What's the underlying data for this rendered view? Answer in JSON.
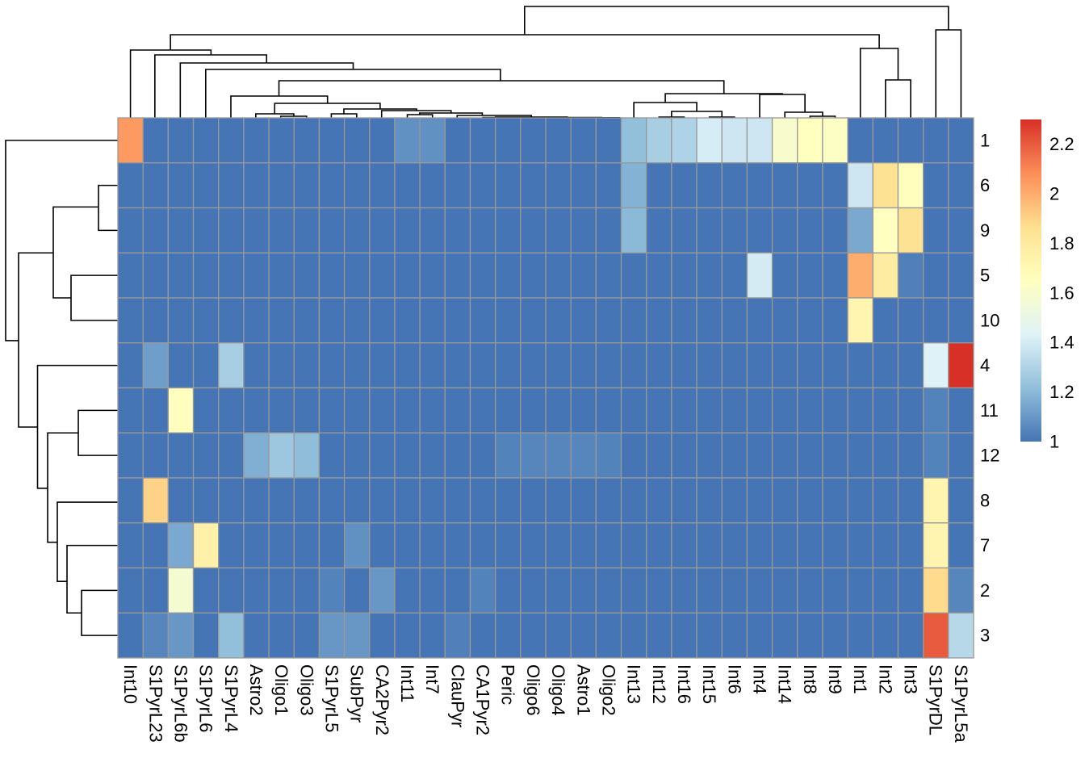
{
  "chart_data": {
    "type": "heatmap",
    "title": "",
    "columns": [
      "Int10",
      "S1PyrL23",
      "S1PyrL6b",
      "S1PyrL6",
      "S1PyrL4",
      "Astro2",
      "Oligo1",
      "Oligo3",
      "S1PyrL5",
      "SubPyr",
      "CA2Pyr2",
      "Int11",
      "Int7",
      "ClauPyr",
      "CA1Pyr2",
      "Peric",
      "Oligo6",
      "Oligo4",
      "Astro1",
      "Oligo2",
      "Int13",
      "Int12",
      "Int16",
      "Int15",
      "Int6",
      "Int4",
      "Int14",
      "Int8",
      "Int9",
      "Int1",
      "Int2",
      "Int3",
      "S1PyrDL",
      "S1PyrL5a"
    ],
    "rows": [
      "1",
      "6",
      "9",
      "5",
      "10",
      "4",
      "11",
      "12",
      "8",
      "7",
      "2",
      "3"
    ],
    "values": [
      [
        2.05,
        1,
        1,
        1,
        1,
        1,
        1,
        1,
        1,
        1,
        1,
        1.08,
        1.08,
        1,
        1,
        1,
        1,
        1,
        1,
        1,
        1.22,
        1.28,
        1.3,
        1.41,
        1.38,
        1.38,
        1.6,
        1.65,
        1.63,
        1,
        1,
        1,
        1,
        1
      ],
      [
        1,
        1,
        1,
        1,
        1,
        1,
        1,
        1,
        1,
        1,
        1,
        1,
        1,
        1,
        1,
        1,
        1,
        1,
        1,
        1,
        1.18,
        1,
        1,
        1,
        1,
        1,
        1,
        1,
        1,
        1.38,
        1.85,
        1.66,
        1,
        1
      ],
      [
        1,
        1,
        1,
        1,
        1,
        1,
        1,
        1,
        1,
        1,
        1,
        1,
        1,
        1,
        1,
        1,
        1,
        1,
        1,
        1,
        1.2,
        1,
        1,
        1,
        1,
        1,
        1,
        1,
        1,
        1.15,
        1.65,
        1.85,
        1,
        1
      ],
      [
        1,
        1,
        1,
        1,
        1,
        1,
        1,
        1,
        1,
        1,
        1,
        1,
        1,
        1,
        1,
        1,
        1,
        1,
        1,
        1,
        1,
        1,
        1,
        1,
        1,
        1.4,
        1,
        1,
        1,
        2.0,
        1.78,
        1.03,
        1,
        1
      ],
      [
        1,
        1,
        1,
        1,
        1,
        1,
        1,
        1,
        1,
        1,
        1,
        1,
        1,
        1,
        1,
        1,
        1,
        1,
        1,
        1,
        1,
        1,
        1,
        1,
        1,
        1,
        1,
        1,
        1,
        1.72,
        1,
        1,
        1,
        1
      ],
      [
        1,
        1.12,
        1,
        1,
        1.28,
        1,
        1,
        1,
        1,
        1,
        1,
        1,
        1,
        1,
        1,
        1,
        1,
        1,
        1,
        1,
        1,
        1,
        1,
        1,
        1,
        1,
        1,
        1,
        1,
        1,
        1,
        1,
        1.43,
        2.3
      ],
      [
        1,
        1,
        1.66,
        1,
        1,
        1,
        1,
        1,
        1,
        1,
        1,
        1,
        1,
        1,
        1,
        1,
        1,
        1,
        1,
        1,
        1,
        1,
        1,
        1,
        1,
        1,
        1,
        1,
        1,
        1,
        1,
        1,
        1.04,
        1
      ],
      [
        1,
        1,
        1,
        1,
        1,
        1.17,
        1.25,
        1.21,
        1,
        1,
        1,
        1,
        1,
        1,
        1,
        1.04,
        1.05,
        1.05,
        1.05,
        1.04,
        1,
        1,
        1,
        1,
        1,
        1,
        1,
        1,
        1,
        1,
        1,
        1,
        1.04,
        1
      ],
      [
        1,
        1.9,
        1,
        1,
        1,
        1,
        1,
        1,
        1,
        1,
        1,
        1,
        1,
        1,
        1,
        1,
        1,
        1,
        1,
        1,
        1,
        1,
        1,
        1,
        1,
        1,
        1,
        1,
        1,
        1,
        1,
        1,
        1.72,
        1
      ],
      [
        1,
        1,
        1.15,
        1.75,
        1,
        1,
        1,
        1,
        1,
        1.08,
        1,
        1,
        1,
        1,
        1,
        1,
        1,
        1,
        1,
        1,
        1,
        1,
        1,
        1,
        1,
        1,
        1,
        1,
        1,
        1,
        1,
        1,
        1.72,
        1
      ],
      [
        1,
        1,
        1.58,
        1,
        1,
        1,
        1,
        1,
        1.04,
        1,
        1.1,
        1,
        1,
        1,
        1.04,
        1,
        1,
        1,
        1,
        1,
        1,
        1,
        1,
        1,
        1,
        1,
        1,
        1,
        1,
        1,
        1,
        1,
        1.88,
        1.05
      ],
      [
        1,
        1.05,
        1.1,
        1,
        1.22,
        1,
        1,
        1,
        1.1,
        1.1,
        1,
        1,
        1,
        1.03,
        1,
        1,
        1,
        1,
        1,
        1,
        1,
        1,
        1,
        1,
        1,
        1,
        1,
        1,
        1,
        1,
        1,
        1,
        2.2,
        1.32
      ]
    ],
    "color_range": [
      1,
      2.3
    ],
    "colors": [
      "#4575B4",
      "#91BFDB",
      "#E0F3F8",
      "#FFFFBF",
      "#FEE090",
      "#FC8D59",
      "#D73027"
    ],
    "cell_border_color": "#999999",
    "legend": {
      "placement": "right",
      "ticks": [
        "1",
        "1.2",
        "1.4",
        "1.6",
        "1.8",
        "2",
        "2.2"
      ]
    },
    "row_dendrogram": true,
    "column_dendrogram": true
  }
}
